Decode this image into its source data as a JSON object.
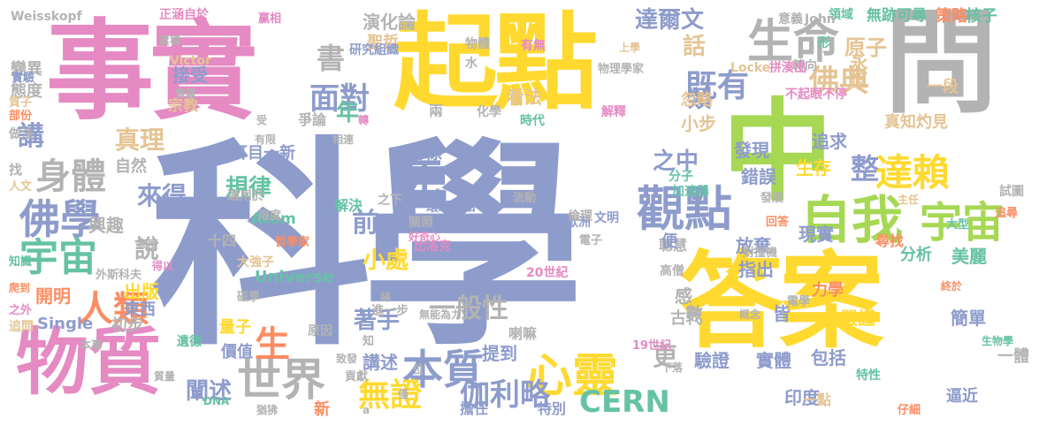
{
  "colors": {
    "blue": "#8e9ccc",
    "pink": "#e58ac3",
    "yellow": "#ffd92f",
    "green": "#a6d854",
    "gray": "#b3b3b3",
    "teal": "#66c2a5",
    "orange": "#fc8d62",
    "tan": "#e5c494",
    "background": "#ffffff"
  },
  "words": [
    {
      "text": "科學",
      "color": "blue"
    },
    {
      "text": "事實",
      "color": "pink"
    },
    {
      "text": "起點",
      "color": "yellow"
    },
    {
      "text": "答案",
      "color": "yellow"
    },
    {
      "text": "問",
      "color": "gray"
    },
    {
      "text": "中",
      "color": "green"
    },
    {
      "text": "物質",
      "color": "pink"
    },
    {
      "text": "生命",
      "color": "gray"
    },
    {
      "text": "觀點",
      "color": "blue"
    },
    {
      "text": "自我",
      "color": "green"
    },
    {
      "text": "宇宙",
      "color": "green"
    },
    {
      "text": "心靈",
      "color": "yellow"
    },
    {
      "text": "佛學",
      "color": "blue"
    },
    {
      "text": "宇宙",
      "color": "teal"
    },
    {
      "text": "世界",
      "color": "gray"
    },
    {
      "text": "本質",
      "color": "blue"
    },
    {
      "text": "人類",
      "color": "orange"
    },
    {
      "text": "身體",
      "color": "gray"
    },
    {
      "text": "死",
      "color": "blue"
    },
    {
      "text": "達賴",
      "color": "yellow"
    },
    {
      "text": "既有",
      "color": "blue"
    },
    {
      "text": "佛典",
      "color": "tan"
    },
    {
      "text": "面對",
      "color": "blue"
    },
    {
      "text": "無證",
      "color": "yellow"
    },
    {
      "text": "伽利略",
      "color": "blue"
    },
    {
      "text": "CERN",
      "color": "teal"
    },
    {
      "text": "一般性",
      "color": "gray"
    },
    {
      "text": "闡述",
      "color": "blue"
    },
    {
      "text": "書",
      "color": "gray"
    },
    {
      "text": "真理",
      "color": "tan"
    },
    {
      "text": "講",
      "color": "blue"
    },
    {
      "text": "達爾文",
      "color": "blue"
    },
    {
      "text": "原子",
      "color": "tan"
    },
    {
      "text": "整",
      "color": "blue"
    },
    {
      "text": "更",
      "color": "gray"
    },
    {
      "text": "生",
      "color": "orange"
    },
    {
      "text": "說",
      "color": "gray"
    },
    {
      "text": "來得",
      "color": "blue"
    },
    {
      "text": "規律",
      "color": "teal"
    },
    {
      "text": "著手",
      "color": "blue"
    },
    {
      "text": "小處",
      "color": "yellow"
    },
    {
      "text": "之中",
      "color": "blue"
    },
    {
      "text": "話",
      "color": "tan"
    },
    {
      "text": "年",
      "color": "teal"
    },
    {
      "text": "前",
      "color": "blue"
    },
    {
      "text": "類",
      "color": "blue"
    },
    {
      "text": "小步",
      "color": "tan"
    },
    {
      "text": "永恆",
      "color": "tan"
    },
    {
      "text": "核子",
      "color": "teal"
    },
    {
      "text": "策略",
      "color": "orange"
    },
    {
      "text": "無跡可尋",
      "color": "teal"
    },
    {
      "text": "領域",
      "color": "teal"
    },
    {
      "text": "形",
      "color": "teal"
    },
    {
      "text": "Weisskopf",
      "color": "gray"
    },
    {
      "text": "正涵自於",
      "color": "pink"
    },
    {
      "text": "赢相",
      "color": "pink"
    },
    {
      "text": "意義",
      "color": "gray"
    },
    {
      "text": "演化論",
      "color": "gray"
    },
    {
      "text": "聖哲",
      "color": "tan"
    },
    {
      "text": "研究組織",
      "color": "blue"
    },
    {
      "text": "Victor",
      "color": "tan"
    },
    {
      "text": "態度",
      "color": "gray"
    },
    {
      "text": "變異",
      "color": "gray"
    },
    {
      "text": "接受",
      "color": "blue"
    },
    {
      "text": "宗教",
      "color": "tan"
    },
    {
      "text": "看法",
      "color": "tan"
    },
    {
      "text": "爭論",
      "color": "gray"
    },
    {
      "text": "兩",
      "color": "gray"
    },
    {
      "text": "化學",
      "color": "gray"
    },
    {
      "text": "時代",
      "color": "teal"
    },
    {
      "text": "解釋",
      "color": "pink"
    },
    {
      "text": "不起眼不停",
      "color": "pink"
    },
    {
      "text": "一段",
      "color": "tan"
    },
    {
      "text": "忽略",
      "color": "tan"
    },
    {
      "text": "轉向",
      "color": "gray"
    },
    {
      "text": "Locke",
      "color": "tan"
    },
    {
      "text": "拼湊出",
      "color": "pink"
    },
    {
      "text": "物理學家",
      "color": "gray"
    },
    {
      "text": "John",
      "color": "gray"
    },
    {
      "text": "發現",
      "color": "blue"
    },
    {
      "text": "追求",
      "color": "blue"
    },
    {
      "text": "錯誤",
      "color": "blue"
    },
    {
      "text": "生存",
      "color": "yellow"
    },
    {
      "text": "真知灼見",
      "color": "tan"
    },
    {
      "text": "目標",
      "color": "blue"
    },
    {
      "text": "耳目一新",
      "color": "blue"
    },
    {
      "text": "自然",
      "color": "gray"
    },
    {
      "text": "興趣",
      "color": "gray"
    },
    {
      "text": "Atom",
      "color": "teal"
    },
    {
      "text": "十四",
      "color": "gray"
    },
    {
      "text": "Universe",
      "color": "teal"
    },
    {
      "text": "出版",
      "color": "yellow"
    },
    {
      "text": "東西",
      "color": "blue"
    },
    {
      "text": "初步",
      "color": "gray"
    },
    {
      "text": "開明",
      "color": "orange"
    },
    {
      "text": "Single",
      "color": "blue"
    },
    {
      "text": "量子",
      "color": "yellow"
    },
    {
      "text": "價值",
      "color": "blue"
    },
    {
      "text": "原因",
      "color": "gray"
    },
    {
      "text": "講述",
      "color": "blue"
    },
    {
      "text": "提到",
      "color": "blue"
    },
    {
      "text": "喇嘛",
      "color": "gray"
    },
    {
      "text": "特別",
      "color": "blue"
    },
    {
      "text": "擔任",
      "color": "blue"
    },
    {
      "text": "印度",
      "color": "blue"
    },
    {
      "text": "包括",
      "color": "blue"
    },
    {
      "text": "一點",
      "color": "tan"
    },
    {
      "text": "一體",
      "color": "gray"
    },
    {
      "text": "逼近",
      "color": "blue"
    },
    {
      "text": "簡單",
      "color": "blue"
    },
    {
      "text": "嚴謹",
      "color": "yellow"
    },
    {
      "text": "力學",
      "color": "orange"
    },
    {
      "text": "古代",
      "color": "gray"
    },
    {
      "text": "現實",
      "color": "blue"
    },
    {
      "text": "分析",
      "color": "teal"
    },
    {
      "text": "美麗",
      "color": "teal"
    },
    {
      "text": "尋找",
      "color": "orange"
    },
    {
      "text": "放棄",
      "color": "blue"
    },
    {
      "text": "聰慧",
      "color": "gray"
    },
    {
      "text": "指出",
      "color": "blue"
    },
    {
      "text": "歐洲",
      "color": "blue"
    },
    {
      "text": "文明",
      "color": "blue"
    },
    {
      "text": "高僧",
      "color": "gray"
    },
    {
      "text": "便",
      "color": "blue"
    },
    {
      "text": "驗證",
      "color": "blue"
    },
    {
      "text": "實體",
      "color": "blue"
    },
    {
      "text": "數",
      "color": "gray"
    },
    {
      "text": "感",
      "color": "gray"
    },
    {
      "text": "皆",
      "color": "blue"
    },
    {
      "text": "20世紀",
      "color": "pink"
    },
    {
      "text": "19世紀",
      "color": "pink"
    },
    {
      "text": "比洛克",
      "color": "pink"
    },
    {
      "text": "環環相扣",
      "color": "blue"
    },
    {
      "text": "關照",
      "color": "gray"
    },
    {
      "text": "電子",
      "color": "gray"
    },
    {
      "text": "倫理",
      "color": "gray"
    },
    {
      "text": "流動",
      "color": "gray"
    },
    {
      "text": "之下",
      "color": "gray"
    },
    {
      "text": "解決",
      "color": "teal"
    },
    {
      "text": "適用於",
      "color": "gray"
    },
    {
      "text": "哲學家",
      "color": "orange"
    },
    {
      "text": "好奇心",
      "color": "pink"
    },
    {
      "text": "外斯科夫",
      "color": "gray"
    },
    {
      "text": "大強子",
      "color": "tan"
    },
    {
      "text": "磁學",
      "color": "gray"
    },
    {
      "text": "進一步",
      "color": "gray"
    },
    {
      "text": "無能為力",
      "color": "gray"
    },
    {
      "text": "絲",
      "color": "gray"
    },
    {
      "text": "致發",
      "color": "gray"
    },
    {
      "text": "遺德",
      "color": "teal"
    },
    {
      "text": "實驗",
      "color": "blue"
    },
    {
      "text": "質子",
      "color": "tan"
    },
    {
      "text": "部份",
      "color": "orange"
    },
    {
      "text": "做法",
      "color": "gray"
    },
    {
      "text": "找",
      "color": "gray"
    },
    {
      "text": "人文",
      "color": "tan"
    },
    {
      "text": "知識",
      "color": "teal"
    },
    {
      "text": "爬到",
      "color": "orange"
    },
    {
      "text": "之外",
      "color": "pink"
    },
    {
      "text": "追問",
      "color": "tan"
    },
    {
      "text": "本事",
      "color": "gray"
    },
    {
      "text": "得以",
      "color": "pink"
    },
    {
      "text": "高度",
      "color": "gray"
    },
    {
      "text": "限度",
      "color": "gray"
    },
    {
      "text": "有限",
      "color": "gray"
    },
    {
      "text": "相連",
      "color": "gray"
    },
    {
      "text": "費曼",
      "color": "gray"
    },
    {
      "text": "累積",
      "color": "gray"
    },
    {
      "text": "物體",
      "color": "gray"
    },
    {
      "text": "有無",
      "color": "pink"
    },
    {
      "text": "水",
      "color": "gray"
    },
    {
      "text": "上學",
      "color": "tan"
    },
    {
      "text": "發展",
      "color": "gray"
    },
    {
      "text": "主任",
      "color": "tan"
    },
    {
      "text": "加速器",
      "color": "teal"
    },
    {
      "text": "分子",
      "color": "teal"
    },
    {
      "text": "試圖",
      "color": "gray"
    },
    {
      "text": "追尋",
      "color": "orange"
    },
    {
      "text": "回答",
      "color": "orange"
    },
    {
      "text": "大型",
      "color": "teal"
    },
    {
      "text": "對撞機",
      "color": "gray"
    },
    {
      "text": "終於",
      "color": "orange"
    },
    {
      "text": "電學",
      "color": "gray"
    },
    {
      "text": "概念",
      "color": "gray"
    },
    {
      "text": "生物學",
      "color": "teal"
    },
    {
      "text": "特性",
      "color": "teal"
    },
    {
      "text": "下落",
      "color": "gray"
    },
    {
      "text": "仔細",
      "color": "orange"
    },
    {
      "text": "貢獻",
      "color": "gray"
    },
    {
      "text": "質量",
      "color": "gray"
    },
    {
      "text": "DNA",
      "color": "teal"
    },
    {
      "text": "猶狒",
      "color": "gray"
    },
    {
      "text": "a",
      "color": "gray"
    },
    {
      "text": "新",
      "color": "orange"
    },
    {
      "text": "位",
      "color": "gray"
    },
    {
      "text": "僅",
      "color": "gray"
    },
    {
      "text": "知",
      "color": "gray"
    },
    {
      "text": "轉",
      "color": "pink"
    },
    {
      "text": "受",
      "color": "gray"
    }
  ]
}
